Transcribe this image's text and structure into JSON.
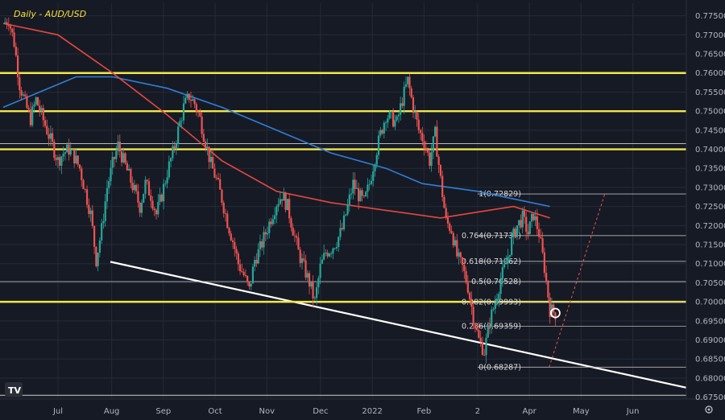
{
  "chart_title": "Daily - AUD/USD",
  "colors": {
    "background": "#161a25",
    "grid": "#262a36",
    "bull": "#26a69a",
    "bear": "#ef5350",
    "ma_fast": "#e5483f",
    "ma_slow": "#2f7fd6",
    "support_resistance": "#f2e64a",
    "trendline": "#ffffff",
    "fib": "#b8b8b8",
    "price_tag": "#f23645"
  },
  "chart_data": {
    "type": "candlestick",
    "title": "Daily - AUD/USD",
    "x_tick_labels": [
      "Jul",
      "Aug",
      "Sep",
      "Oct",
      "Nov",
      "Dec",
      "2022",
      "Feb",
      "2",
      "Apr",
      "May",
      "Jun"
    ],
    "y_tick_labels": [
      "0.77500",
      "0.77000",
      "0.76500",
      "0.76000",
      "0.75500",
      "0.75000",
      "0.74500",
      "0.74000",
      "0.73500",
      "0.73000",
      "0.72500",
      "0.72000",
      "0.71500",
      "0.71000",
      "0.70500",
      "0.70000",
      "0.69500",
      "0.69000",
      "0.68500",
      "0.68000",
      "0.67500"
    ],
    "ylim": [
      0.6745,
      0.7783
    ],
    "highlighted_levels": [
      {
        "label": "0.76000",
        "value": 0.76
      },
      {
        "label": "0.75000",
        "value": 0.75
      },
      {
        "label": "0.74000",
        "value": 0.74
      },
      {
        "label": "0.70000",
        "value": 0.7
      }
    ],
    "current_price": {
      "label": "0.69707",
      "value": 0.69707
    },
    "fibonacci": [
      {
        "label": "1(0.72829)",
        "value": 0.72829
      },
      {
        "label": "0.764(0.71737)",
        "value": 0.71737
      },
      {
        "label": "0.618(0.71062)",
        "value": 0.71062
      },
      {
        "label": "0.5(0.70528)",
        "value": 0.70528
      },
      {
        "label": "0.382(0.69993)",
        "value": 0.69993
      },
      {
        "label": "0.236(0.69359)",
        "value": 0.69359
      },
      {
        "label": "0(0.68287)",
        "value": 0.68287
      }
    ],
    "price_path": [
      [
        0,
        0.773
      ],
      [
        3,
        0.774
      ],
      [
        6,
        0.768
      ],
      [
        9,
        0.757
      ],
      [
        12,
        0.752
      ],
      [
        15,
        0.748
      ],
      [
        18,
        0.753
      ],
      [
        21,
        0.749
      ],
      [
        24,
        0.745
      ],
      [
        27,
        0.741
      ],
      [
        30,
        0.737
      ],
      [
        33,
        0.739
      ],
      [
        36,
        0.74
      ],
      [
        39,
        0.738
      ],
      [
        42,
        0.735
      ],
      [
        45,
        0.729
      ],
      [
        48,
        0.723
      ],
      [
        51,
        0.711
      ],
      [
        54,
        0.719
      ],
      [
        57,
        0.73
      ],
      [
        60,
        0.736
      ],
      [
        63,
        0.741
      ],
      [
        66,
        0.737
      ],
      [
        69,
        0.733
      ],
      [
        72,
        0.729
      ],
      [
        75,
        0.725
      ],
      [
        78,
        0.731
      ],
      [
        81,
        0.728
      ],
      [
        84,
        0.723
      ],
      [
        87,
        0.728
      ],
      [
        90,
        0.734
      ],
      [
        93,
        0.739
      ],
      [
        96,
        0.745
      ],
      [
        99,
        0.751
      ],
      [
        102,
        0.754
      ],
      [
        105,
        0.752
      ],
      [
        108,
        0.748
      ],
      [
        111,
        0.742
      ],
      [
        114,
        0.736
      ],
      [
        117,
        0.732
      ],
      [
        120,
        0.727
      ],
      [
        123,
        0.721
      ],
      [
        126,
        0.716
      ],
      [
        129,
        0.71
      ],
      [
        132,
        0.707
      ],
      [
        135,
        0.703
      ],
      [
        138,
        0.711
      ],
      [
        141,
        0.714
      ],
      [
        144,
        0.718
      ],
      [
        147,
        0.722
      ],
      [
        150,
        0.726
      ],
      [
        153,
        0.728
      ],
      [
        156,
        0.725
      ],
      [
        159,
        0.719
      ],
      [
        162,
        0.713
      ],
      [
        165,
        0.709
      ],
      [
        168,
        0.705
      ],
      [
        171,
        0.7
      ],
      [
        174,
        0.709
      ],
      [
        177,
        0.713
      ],
      [
        180,
        0.714
      ],
      [
        183,
        0.716
      ],
      [
        186,
        0.719
      ],
      [
        189,
        0.725
      ],
      [
        192,
        0.731
      ],
      [
        195,
        0.728
      ],
      [
        198,
        0.726
      ],
      [
        201,
        0.731
      ],
      [
        204,
        0.738
      ],
      [
        207,
        0.744
      ],
      [
        210,
        0.749
      ],
      [
        213,
        0.748
      ],
      [
        216,
        0.747
      ],
      [
        219,
        0.753
      ],
      [
        222,
        0.758
      ],
      [
        225,
        0.751
      ],
      [
        228,
        0.745
      ],
      [
        231,
        0.742
      ],
      [
        234,
        0.737
      ],
      [
        237,
        0.744
      ],
      [
        240,
        0.732
      ],
      [
        243,
        0.721
      ],
      [
        246,
        0.719
      ],
      [
        249,
        0.712
      ],
      [
        252,
        0.709
      ],
      [
        255,
        0.704
      ],
      [
        258,
        0.696
      ],
      [
        261,
        0.69
      ],
      [
        264,
        0.687
      ],
      [
        267,
        0.695
      ],
      [
        270,
        0.7
      ],
      [
        273,
        0.706
      ],
      [
        276,
        0.71
      ],
      [
        279,
        0.716
      ],
      [
        282,
        0.72
      ],
      [
        285,
        0.722
      ],
      [
        288,
        0.718
      ],
      [
        291,
        0.723
      ],
      [
        294,
        0.718
      ],
      [
        297,
        0.709
      ],
      [
        300,
        0.698
      ],
      [
        303,
        0.697
      ]
    ],
    "ma_fast_path": [
      [
        0,
        0.773
      ],
      [
        30,
        0.77
      ],
      [
        60,
        0.76
      ],
      [
        90,
        0.749
      ],
      [
        120,
        0.737
      ],
      [
        150,
        0.729
      ],
      [
        180,
        0.726
      ],
      [
        210,
        0.724
      ],
      [
        240,
        0.722
      ],
      [
        260,
        0.7235
      ],
      [
        280,
        0.725
      ],
      [
        300,
        0.722
      ]
    ],
    "ma_slow_path": [
      [
        0,
        0.751
      ],
      [
        20,
        0.755
      ],
      [
        40,
        0.759
      ],
      [
        60,
        0.759
      ],
      [
        90,
        0.756
      ],
      [
        120,
        0.751
      ],
      [
        150,
        0.745
      ],
      [
        180,
        0.739
      ],
      [
        210,
        0.735
      ],
      [
        230,
        0.731
      ],
      [
        260,
        0.729
      ],
      [
        280,
        0.727
      ],
      [
        300,
        0.725
      ]
    ]
  }
}
